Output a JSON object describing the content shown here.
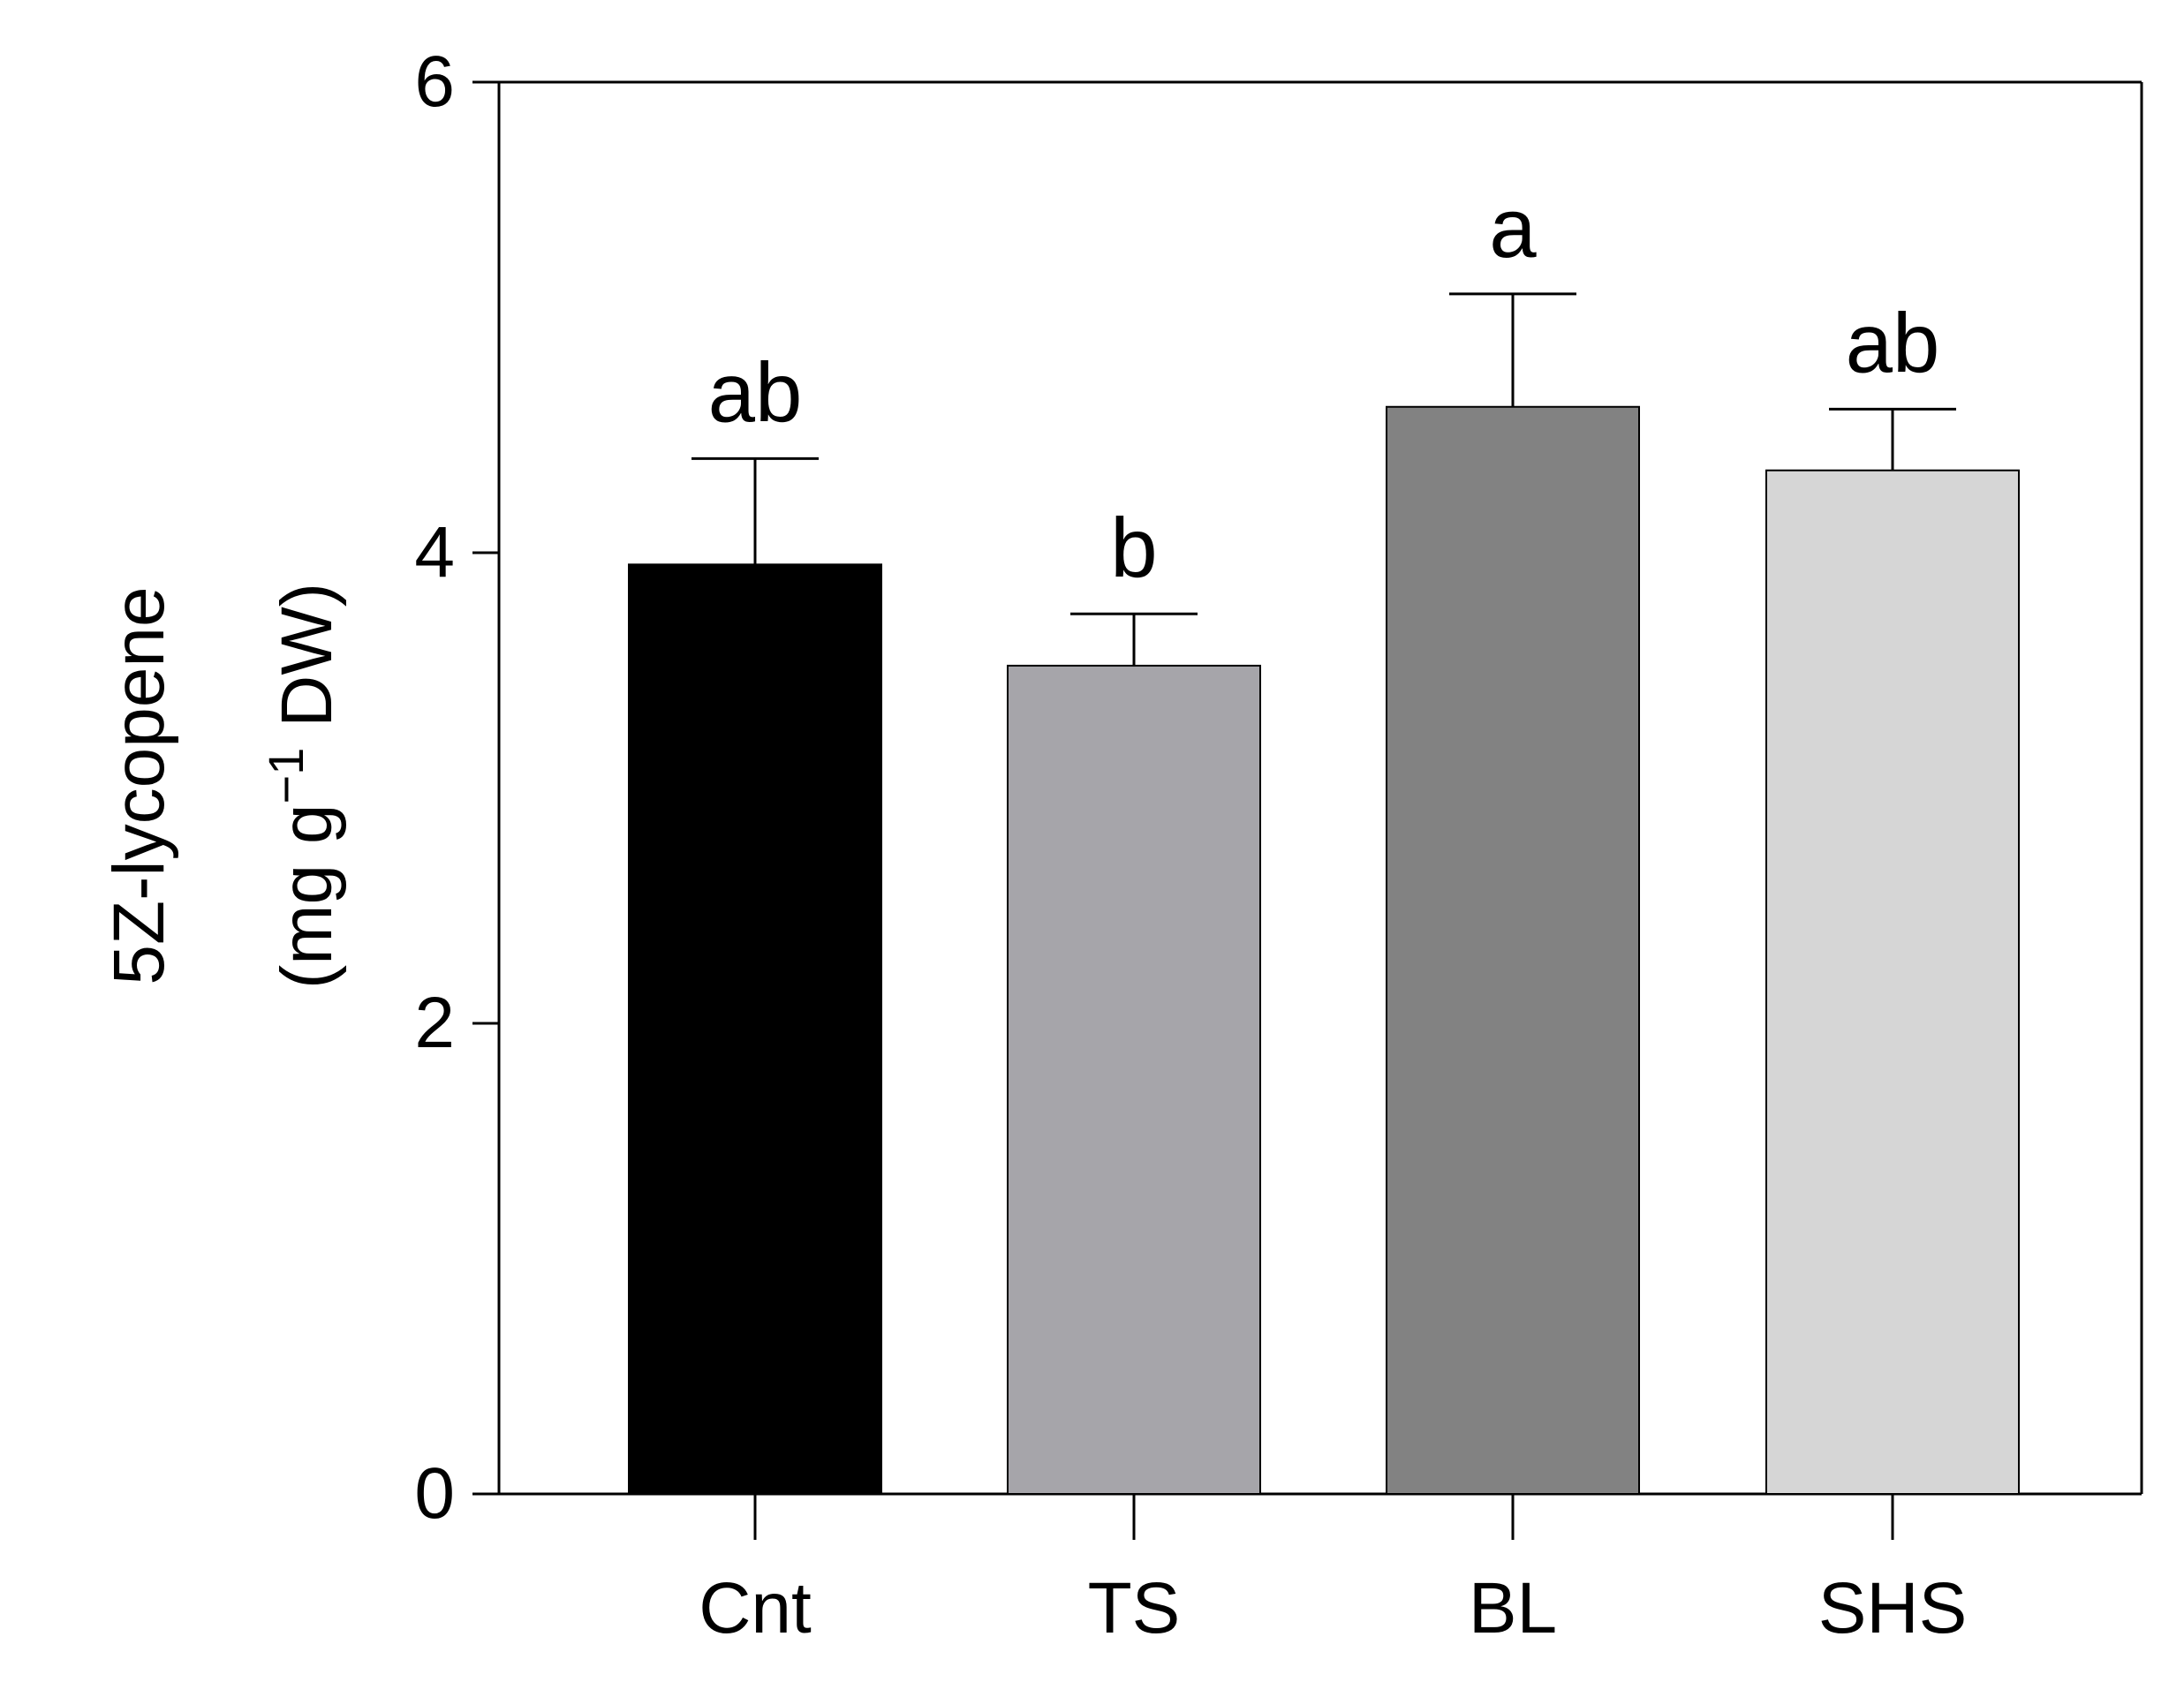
{
  "chart_data": {
    "type": "bar",
    "categories": [
      "Cnt",
      "TS",
      "BL",
      "SHS"
    ],
    "values": [
      3.95,
      3.52,
      4.62,
      4.35
    ],
    "errors": [
      0.45,
      0.22,
      0.48,
      0.26
    ],
    "significance_letters": [
      "ab",
      "b",
      "a",
      "ab"
    ],
    "colors": [
      "#000000",
      "#a6a5aa",
      "#828282",
      "#d6d6d6"
    ],
    "ylim": [
      0,
      6
    ],
    "yticks": [
      0,
      2,
      4,
      6
    ],
    "ylabel": {
      "line1": "5Z-lycopene",
      "line2_prefix": "(mg g",
      "line2_superscript": "−1",
      "line2_suffix": " DW)"
    },
    "xlabel": "",
    "title": ""
  }
}
